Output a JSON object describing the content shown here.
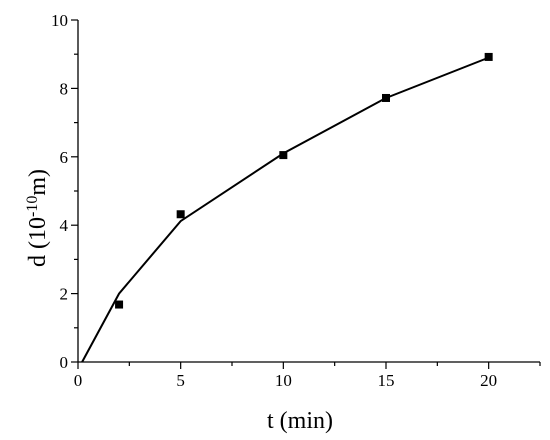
{
  "chart_data": {
    "type": "scatter",
    "title": "",
    "xlabel": "t (min)",
    "ylabel_main": "d (10",
    "ylabel_sup": "-10",
    "ylabel_unit": "m)",
    "xlim": [
      0,
      22.5
    ],
    "ylim": [
      0,
      10
    ],
    "x_ticks": [
      0,
      5,
      10,
      15,
      20
    ],
    "y_ticks": [
      0,
      2,
      4,
      6,
      8,
      10
    ],
    "x_minor_ticks": [
      2.5,
      7.5,
      12.5,
      17.5,
      22.5
    ],
    "y_minor_ticks": [
      1,
      3,
      5,
      7,
      9
    ],
    "grid": false,
    "legend": "none",
    "series": [
      {
        "type": "scatter",
        "marker": "square",
        "x": [
          2,
          5,
          10,
          15,
          20
        ],
        "y": [
          1.68,
          4.32,
          6.05,
          7.72,
          8.92
        ]
      },
      {
        "type": "line",
        "x": [
          0.2,
          2,
          5,
          10,
          15,
          20
        ],
        "y": [
          0,
          2.0,
          4.12,
          6.1,
          7.72,
          8.9
        ]
      }
    ]
  }
}
